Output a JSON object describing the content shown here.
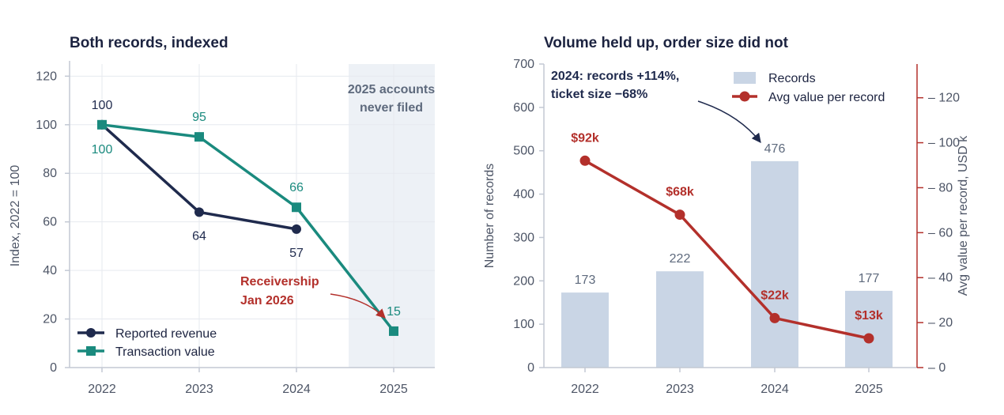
{
  "colors": {
    "navy": "#1f2a4d",
    "teal": "#1a8a7e",
    "red": "#b3302b",
    "bar": "#c9d5e5",
    "shade": "#edf1f6",
    "axis": "#c3c9d4",
    "grid": "#e6e9ef",
    "shade_text": "#5e6a7d"
  },
  "chart_data": [
    {
      "type": "line",
      "title": "Both records, indexed",
      "ylabel": "Index, 2022 = 100",
      "ylim": [
        0,
        125
      ],
      "yticks": [
        0,
        20,
        40,
        60,
        80,
        100,
        120
      ],
      "x": [
        "2022",
        "2023",
        "2024",
        "2025"
      ],
      "series": [
        {
          "name": "Reported revenue",
          "values": [
            100,
            64,
            57,
            null
          ],
          "labels": [
            "100",
            "64",
            "57",
            ""
          ]
        },
        {
          "name": "Transaction value",
          "values": [
            100,
            95,
            66,
            15
          ],
          "labels": [
            "100",
            "95",
            "66",
            "15"
          ]
        }
      ],
      "shaded_region": {
        "x": "2025",
        "label_line1": "2025 accounts",
        "label_line2": "never filed"
      },
      "annotation": {
        "line1": "Receivership",
        "line2": "Jan 2026"
      },
      "legend": "bottom-left"
    },
    {
      "type": "bar",
      "title": "Volume held up, order size did not",
      "categories": [
        "2022",
        "2023",
        "2024",
        "2025"
      ],
      "ylabel": "Number of records",
      "ylim": [
        0,
        700
      ],
      "yticks": [
        0,
        100,
        200,
        300,
        400,
        500,
        600,
        700
      ],
      "y2label": "Avg value per record, USD k",
      "y2lim": [
        0,
        135
      ],
      "y2ticks": [
        0,
        20,
        40,
        60,
        80,
        100,
        120
      ],
      "series": [
        {
          "name": "Records",
          "kind": "bar",
          "values": [
            173,
            222,
            476,
            177
          ],
          "labels": [
            "173",
            "222",
            "476",
            "177"
          ]
        },
        {
          "name": "Avg value per record",
          "kind": "line",
          "axis": "right",
          "values": [
            92,
            68,
            22,
            13
          ],
          "labels": [
            "$92k",
            "$68k",
            "$22k",
            "$13k"
          ]
        }
      ],
      "annotation": {
        "line1": "2024: records +114%,",
        "line2": "ticket size −68%"
      },
      "legend": "top-right"
    }
  ]
}
